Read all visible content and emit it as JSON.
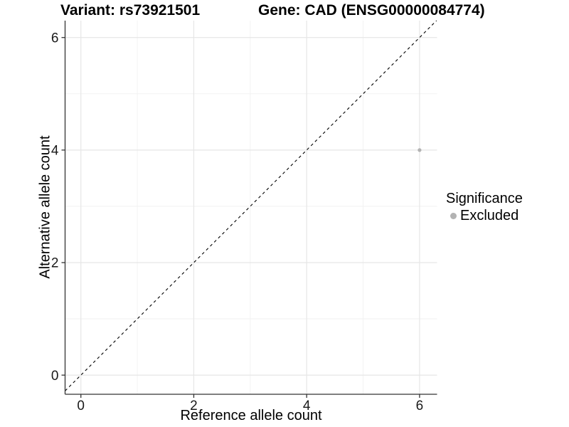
{
  "chart_data": {
    "type": "scatter",
    "titles": {
      "variant": "Variant: rs73921501",
      "gene": "Gene: CAD (ENSG00000084774)"
    },
    "xlabel": "Reference allele count",
    "ylabel": "Alternative allele count",
    "xlim": [
      -0.28,
      6.31
    ],
    "ylim": [
      -0.34,
      6.3
    ],
    "x_ticks": [
      0,
      2,
      4,
      6
    ],
    "y_ticks": [
      0,
      2,
      4,
      6
    ],
    "x_minor_ticks": [
      1,
      3,
      5
    ],
    "y_minor_ticks": [
      1,
      3,
      5
    ],
    "grid": "major+minor",
    "reference_line": {
      "type": "identity",
      "slope": 1,
      "intercept": 0,
      "style": "dashed",
      "color": "#000000"
    },
    "points": [
      {
        "x": 6,
        "y": 4,
        "series": "Excluded"
      }
    ],
    "legend": {
      "title": "Significance",
      "position": "right",
      "items": [
        {
          "label": "Excluded",
          "color": "#b3b3b3",
          "marker": "circle"
        }
      ]
    }
  },
  "colors": {
    "background": "#ffffff",
    "grid_major": "#e6e6e6",
    "grid_minor": "#f2f2f2",
    "axis": "#333333",
    "tick_text": "#1a1a1a",
    "point": "#b3b3b3"
  }
}
